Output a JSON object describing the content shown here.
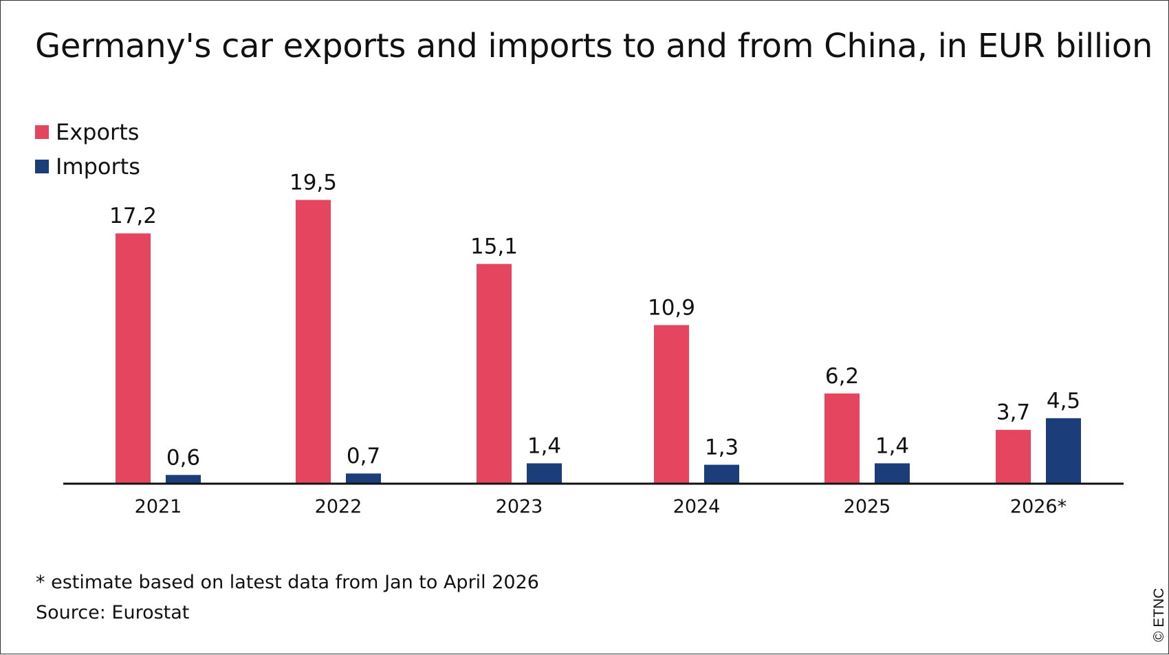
{
  "title": "Germany's car exports and imports to and from China, in EUR billion",
  "footnote": "* estimate based on latest data from Jan to April 2026",
  "source": "Source: Eurostat",
  "copyright": "© ETNC",
  "colors": {
    "exports": "#e64560",
    "imports": "#1b3d7a",
    "axis": "#111111"
  },
  "chart_data": {
    "type": "bar",
    "categories": [
      "2021",
      "2022",
      "2023",
      "2024",
      "2025",
      "2026*"
    ],
    "series": [
      {
        "name": "Exports",
        "values": [
          17.2,
          19.5,
          15.1,
          10.9,
          6.2,
          3.7
        ],
        "labels": [
          "17,2",
          "19,5",
          "15,1",
          "10,9",
          "6,2",
          "3,7"
        ]
      },
      {
        "name": "Imports",
        "values": [
          0.6,
          0.7,
          1.4,
          1.3,
          1.4,
          4.5
        ],
        "labels": [
          "0,6",
          "0,7",
          "1,4",
          "1,3",
          "1,4",
          "4,5"
        ]
      }
    ],
    "legend": "top-left",
    "grid": false
  }
}
